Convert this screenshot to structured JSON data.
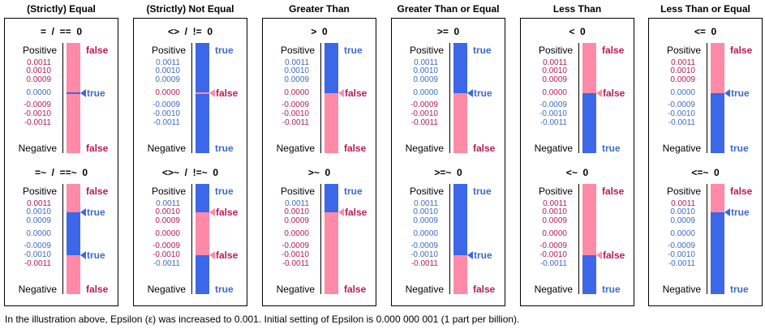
{
  "colors": {
    "true_blue": "#3c67e8",
    "false_pink": "#ff8aa7",
    "true_text": "#3d6bcc",
    "false_text": "#bb1c52"
  },
  "labels": {
    "positive": "Positive",
    "negative": "Negative",
    "true": "true",
    "false": "false"
  },
  "ticks": [
    "0.0011",
    "0.0010",
    "0.0009",
    "0.0000",
    "-0.0009",
    "-0.0010",
    "-0.0011"
  ],
  "columns": [
    {
      "title": "(Strictly) Equal",
      "panels": [
        {
          "op": "=  /  ==  0",
          "top": "false",
          "bottom": "false",
          "segments": [
            [
              0.0011,
              5e-05,
              "false"
            ],
            [
              5e-05,
              -5e-05,
              "true"
            ],
            [
              -5e-05,
              -0.0011,
              "false"
            ]
          ],
          "markers": [
            [
              0.0,
              "true"
            ]
          ]
        },
        {
          "op": "=~  /  ==~  0",
          "top": "false",
          "bottom": "false",
          "segments": [
            [
              0.0011,
              0.001,
              "false"
            ],
            [
              0.001,
              -0.001,
              "true"
            ],
            [
              -0.001,
              -0.0011,
              "false"
            ]
          ],
          "markers": [
            [
              0.001,
              "true"
            ],
            [
              -0.001,
              "true"
            ]
          ]
        }
      ]
    },
    {
      "title": "(Strictly)  Not Equal",
      "panels": [
        {
          "op": "<>  /  !=  0",
          "top": "true",
          "bottom": "true",
          "segments": [
            [
              0.0011,
              5e-05,
              "true"
            ],
            [
              5e-05,
              -5e-05,
              "false"
            ],
            [
              -5e-05,
              -0.0011,
              "true"
            ]
          ],
          "markers": [
            [
              0.0,
              "false"
            ]
          ]
        },
        {
          "op": "<>~  /  !=~  0",
          "top": "true",
          "bottom": "true",
          "segments": [
            [
              0.0011,
              0.001,
              "true"
            ],
            [
              0.001,
              -0.001,
              "false"
            ],
            [
              -0.001,
              -0.0011,
              "true"
            ]
          ],
          "markers": [
            [
              0.001,
              "false"
            ],
            [
              -0.001,
              "false"
            ]
          ]
        }
      ]
    },
    {
      "title": "Greater Than",
      "panels": [
        {
          "op": ">  0",
          "top": "true",
          "bottom": "false",
          "segments": [
            [
              0.0011,
              0.0,
              "true"
            ],
            [
              0.0,
              -0.0011,
              "false"
            ]
          ],
          "markers": [
            [
              0.0,
              "false"
            ]
          ]
        },
        {
          "op": ">~  0",
          "top": "true",
          "bottom": "false",
          "segments": [
            [
              0.0011,
              0.001,
              "true"
            ],
            [
              0.001,
              -0.0011,
              "false"
            ]
          ],
          "markers": [
            [
              0.001,
              "false"
            ]
          ]
        }
      ]
    },
    {
      "title": "Greater Than or Equal",
      "panels": [
        {
          "op": ">=  0",
          "top": "true",
          "bottom": "false",
          "segments": [
            [
              0.0011,
              0.0,
              "true"
            ],
            [
              0.0,
              -0.0011,
              "false"
            ]
          ],
          "markers": [
            [
              0.0,
              "true"
            ]
          ]
        },
        {
          "op": ">=~  0",
          "top": "true",
          "bottom": "false",
          "segments": [
            [
              0.0011,
              -0.001,
              "true"
            ],
            [
              -0.001,
              -0.0011,
              "false"
            ]
          ],
          "markers": [
            [
              -0.001,
              "true"
            ]
          ]
        }
      ]
    },
    {
      "title": "Less  Than",
      "panels": [
        {
          "op": "<  0",
          "top": "false",
          "bottom": "true",
          "segments": [
            [
              0.0011,
              0.0,
              "false"
            ],
            [
              0.0,
              -0.0011,
              "true"
            ]
          ],
          "markers": [
            [
              0.0,
              "false"
            ]
          ]
        },
        {
          "op": "<~  0",
          "top": "false",
          "bottom": "true",
          "segments": [
            [
              0.0011,
              -0.001,
              "false"
            ],
            [
              -0.001,
              -0.0011,
              "true"
            ]
          ],
          "markers": [
            [
              -0.001,
              "false"
            ]
          ]
        }
      ]
    },
    {
      "title": "Less Than or Equal",
      "panels": [
        {
          "op": "<=  0",
          "top": "false",
          "bottom": "true",
          "segments": [
            [
              0.0011,
              0.0,
              "false"
            ],
            [
              0.0,
              -0.0011,
              "true"
            ]
          ],
          "markers": [
            [
              0.0,
              "true"
            ]
          ]
        },
        {
          "op": "<=~  0",
          "top": "false",
          "bottom": "true",
          "segments": [
            [
              0.0011,
              0.001,
              "false"
            ],
            [
              0.001,
              -0.0011,
              "true"
            ]
          ],
          "markers": [
            [
              0.001,
              "true"
            ]
          ]
        }
      ]
    }
  ],
  "footnote": "In the illustration above,  Epsilon (ε) was increased to 0.001.  Initial setting of Epsilon is  0.000 000 001 (1 part per billion)."
}
